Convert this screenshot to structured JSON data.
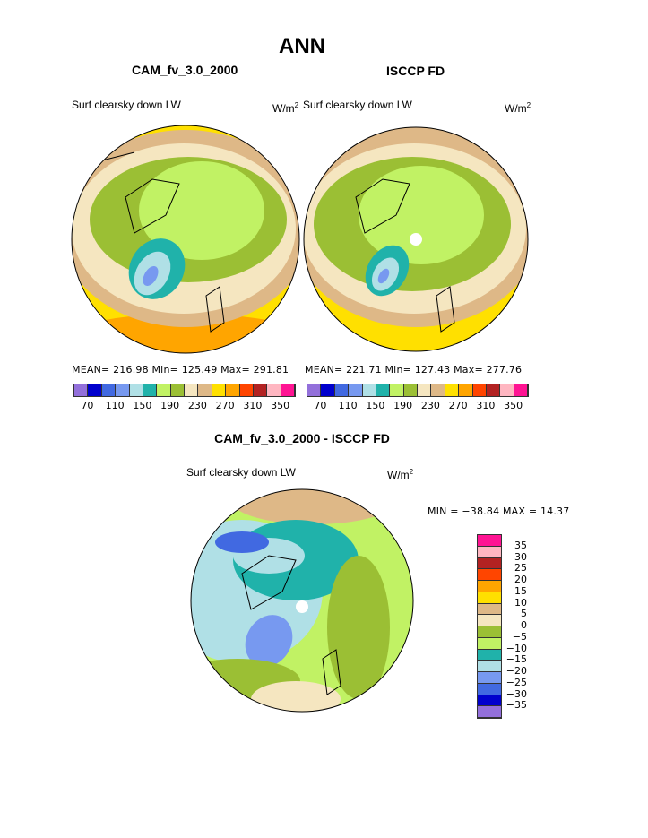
{
  "title": "ANN",
  "panels": [
    {
      "subtitle": "CAM_fv_3.0_2000",
      "variable": "Surf clearsky down LW",
      "units": "W/m",
      "units_sup": "2",
      "stats": "MEAN= 216.98   Min= 125.49   Max= 291.81"
    },
    {
      "subtitle": "ISCCP FD",
      "variable": "Surf clearsky down LW",
      "units": "W/m",
      "units_sup": "2",
      "stats": "MEAN= 221.71   Min= 127.43   Max= 277.76"
    }
  ],
  "abs_colorbar": {
    "colors": [
      "#9370db",
      "#0000cd",
      "#4169e1",
      "#7799f0",
      "#b0e0e6",
      "#20b2aa",
      "#c1f264",
      "#9bbf34",
      "#f5e6c0",
      "#deb887",
      "#ffe000",
      "#ffa500",
      "#ff4500",
      "#b22222",
      "#ffb6c1",
      "#ff1493"
    ],
    "labels": [
      "70",
      "110",
      "150",
      "190",
      "230",
      "270",
      "310",
      "350"
    ]
  },
  "diff_panel": {
    "subtitle": "CAM_fv_3.0_2000 - ISCCP FD",
    "variable": "Surf clearsky down LW",
    "units": "W/m",
    "units_sup": "2",
    "stats": "MIN = −38.84  MAX =   14.37",
    "colorbar": {
      "colors": [
        "#ff1493",
        "#ffb6c1",
        "#b22222",
        "#ff4500",
        "#ffa500",
        "#ffe000",
        "#deb887",
        "#f5e6c0",
        "#9bbf34",
        "#c1f264",
        "#20b2aa",
        "#b0e0e6",
        "#7799f0",
        "#4169e1",
        "#0000cd",
        "#9370db"
      ],
      "labels": [
        "35",
        "30",
        "25",
        "20",
        "15",
        "10",
        "5",
        "0",
        "−5",
        "−10",
        "−15",
        "−20",
        "−25",
        "−30",
        "−35"
      ]
    }
  }
}
